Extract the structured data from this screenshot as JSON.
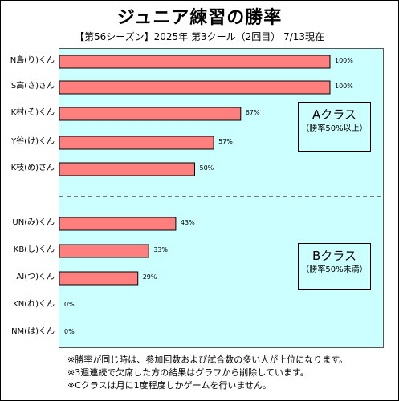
{
  "title": "ジュニア練習の勝率",
  "subtitle": "【第56シーズン】2025年 第3クール（2回目） 7/13現在",
  "chart_data": {
    "type": "bar",
    "orientation": "horizontal",
    "categories": [
      "N島(り)くん",
      "S高(さ)さん",
      "K村(そ)くん",
      "Y谷(け)くん",
      "K枝(め)さん",
      "UN(み)くん",
      "KB(し)くん",
      "AI(つ)くん",
      "KN(れ)くん",
      "NM(は)くん"
    ],
    "values": [
      100,
      100,
      67,
      57,
      50,
      43,
      33,
      29,
      0,
      0
    ],
    "value_labels": [
      "100%",
      "100%",
      "67%",
      "57%",
      "50%",
      "43%",
      "33%",
      "29%",
      "0%",
      "0%"
    ],
    "xlim": [
      0,
      100
    ],
    "bar_color": "#ff7f7f",
    "plot_background": "#ccffff",
    "divider_after_index": 4,
    "groups": [
      {
        "name": "Aクラス",
        "condition": "（勝率50%以上）"
      },
      {
        "name": "Bクラス",
        "condition": "（勝率50%未満）"
      }
    ]
  },
  "notes": [
    "※勝率が同じ時は、参加回数および試合数の多い人が上位になります。",
    "※3週連続で欠席した方の結果はグラフから削除しています。",
    "※Cクラスは月に1度程度しかゲームを行いません。"
  ]
}
